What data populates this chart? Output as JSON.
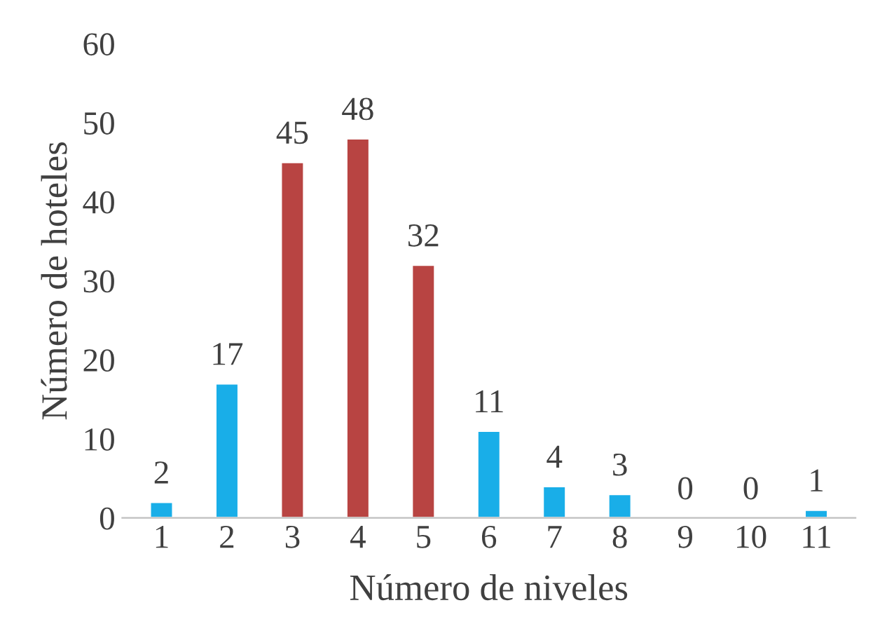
{
  "chart_data": {
    "type": "bar",
    "xlabel": "Número de niveles",
    "ylabel": "Número de hoteles",
    "categories": [
      "1",
      "2",
      "3",
      "4",
      "5",
      "6",
      "7",
      "8",
      "9",
      "10",
      "11"
    ],
    "values": [
      2,
      17,
      45,
      48,
      32,
      11,
      4,
      3,
      0,
      0,
      1
    ],
    "colors": [
      "#19aee8",
      "#19aee8",
      "#b84442",
      "#b84442",
      "#b84442",
      "#19aee8",
      "#19aee8",
      "#19aee8",
      null,
      null,
      "#19aee8"
    ],
    "ylim": [
      0,
      60
    ],
    "yticks": [
      0,
      10,
      20,
      30,
      40,
      50,
      60
    ],
    "data_labels": true,
    "grid": false,
    "legend": false
  }
}
